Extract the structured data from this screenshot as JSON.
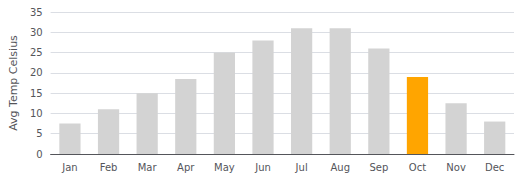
{
  "chart_data": {
    "type": "bar",
    "ylabel": "Avg Temp Celsius",
    "categories": [
      "Jan",
      "Feb",
      "Mar",
      "Apr",
      "May",
      "Jun",
      "Jul",
      "Aug",
      "Sep",
      "Oct",
      "Nov",
      "Dec"
    ],
    "values": [
      7.5,
      11,
      15,
      18.5,
      25,
      28,
      31,
      31,
      26,
      19,
      12.5,
      8
    ],
    "colors": [
      "#d3d3d3",
      "#d3d3d3",
      "#d3d3d3",
      "#d3d3d3",
      "#d3d3d3",
      "#d3d3d3",
      "#d3d3d3",
      "#d3d3d3",
      "#d3d3d3",
      "#ffa500",
      "#d3d3d3",
      "#d3d3d3"
    ],
    "ylim": [
      0,
      35
    ],
    "yticks": [
      0,
      5,
      10,
      15,
      20,
      25,
      30,
      35
    ],
    "grid": true
  }
}
